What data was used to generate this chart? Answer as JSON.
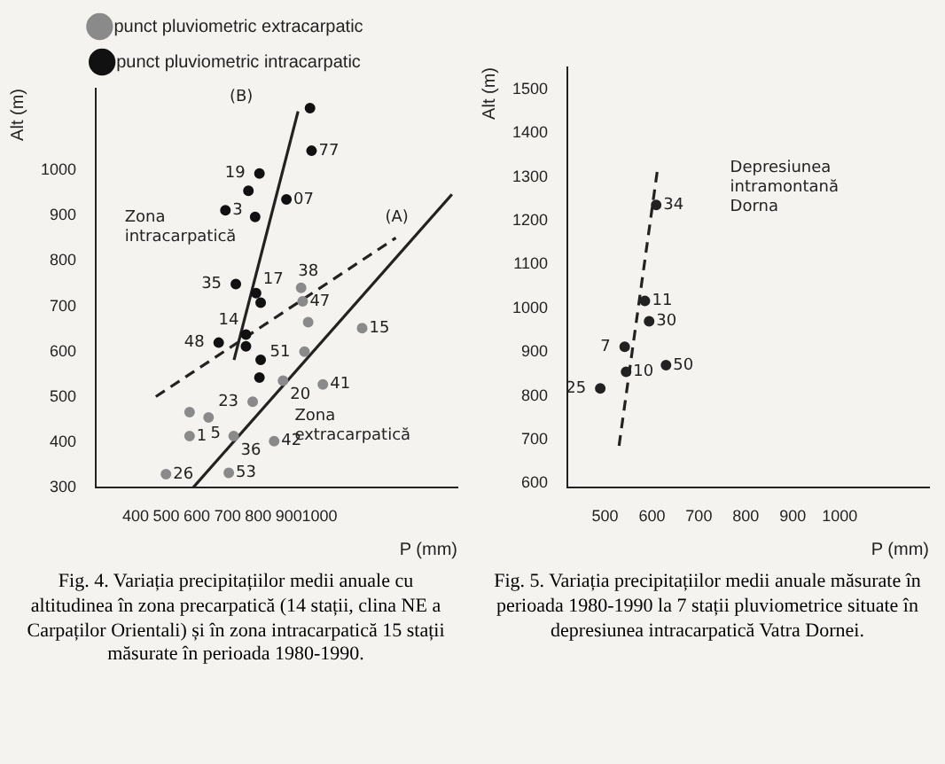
{
  "chart_data": [
    {
      "type": "scatter",
      "xlabel": "P (mm)",
      "ylabel": "Alt (m)",
      "xlim": [
        270,
        1450
      ],
      "xticks": [
        400,
        500,
        600,
        700,
        800,
        900,
        1000
      ],
      "ylim": [
        300,
        1180
      ],
      "yticks": [
        300,
        400,
        500,
        600,
        700,
        800,
        900,
        1000
      ],
      "grid": false,
      "legend": "top",
      "marker": "circle",
      "series": [
        {
          "name": "punct pluviometric extracarpatic",
          "color": "#8a8a8a",
          "x": [
            940,
            945,
            963,
            1139,
            951,
            881,
            1011,
            782,
            576,
            638,
            576,
            720,
            852,
            499,
            704
          ],
          "values": [
            741,
            711,
            665,
            652,
            600,
            536,
            528,
            490,
            467,
            455,
            414,
            414,
            403,
            330,
            333
          ]
        },
        {
          "name": "punct pluviometric intracarpatic",
          "color": "#111111",
          "x": [
            969,
            974,
            804,
            768,
            892,
            693,
            790,
            727,
            793,
            808,
            760,
            671,
            760,
            808,
            804
          ],
          "values": [
            1137,
            1043,
            993,
            955,
            936,
            912,
            897,
            749,
            729,
            708,
            638,
            620,
            612,
            582,
            543
          ]
        },
        {
          "type": "line",
          "color": "#222222",
          "line_style": "solid",
          "marker": "none",
          "x": [
            721,
            930
          ],
          "values": [
            582,
            1130
          ]
        },
        {
          "type": "line",
          "color": "#222222",
          "line_style": "solid",
          "marker": "none",
          "x": [
            587,
            1432
          ],
          "values": [
            300,
            947
          ]
        },
        {
          "type": "line",
          "color": "#222222",
          "line_style": "dashed",
          "marker": "none",
          "x": [
            466,
            1249
          ],
          "values": [
            501,
            851
          ]
        }
      ],
      "annotations": [
        "(B)",
        "(A)",
        "Zona intracarpatică",
        "Zona extracarpatică",
        {
          "text": "77",
          "x": 974,
          "y": 1043
        },
        {
          "text": "19",
          "x": 804,
          "y": 993
        },
        {
          "text": "07",
          "x": 892,
          "y": 936
        },
        {
          "text": "3",
          "x": 693,
          "y": 912
        },
        {
          "text": "35",
          "x": 727,
          "y": 749
        },
        {
          "text": "17",
          "x": 793,
          "y": 729
        },
        {
          "text": "38",
          "x": 940,
          "y": 741
        },
        {
          "text": "47",
          "x": 945,
          "y": 711
        },
        {
          "text": "15",
          "x": 1139,
          "y": 652
        },
        {
          "text": "14",
          "x": 760,
          "y": 638
        },
        {
          "text": "48",
          "x": 671,
          "y": 620
        },
        {
          "text": "51",
          "x": 951,
          "y": 600
        },
        {
          "text": "20",
          "x": 881,
          "y": 536
        },
        {
          "text": "41",
          "x": 1011,
          "y": 528
        },
        {
          "text": "23",
          "x": 782,
          "y": 490
        },
        {
          "text": "5",
          "x": 638,
          "y": 455
        },
        {
          "text": "1",
          "x": 576,
          "y": 414
        },
        {
          "text": "36",
          "x": 720,
          "y": 414
        },
        {
          "text": "42",
          "x": 852,
          "y": 403
        },
        {
          "text": "26",
          "x": 499,
          "y": 330
        },
        {
          "text": "53",
          "x": 704,
          "y": 333
        },
        "Fig. 4. Variația precipitațiilor medii anuale cu altitudinea în zona precarpatică (14 stații, clina NE a Carpaților Orientali) și în zona intracarpatică 15 stații măsurate în perioada 1980-1990."
      ]
    },
    {
      "type": "scatter",
      "xlabel": "P (mm)",
      "ylabel": "Alt (m)",
      "xlim": [
        420,
        1190
      ],
      "xticks": [
        500,
        600,
        700,
        800,
        900,
        1000
      ],
      "ylim": [
        590,
        1550
      ],
      "yticks": [
        600,
        700,
        800,
        900,
        1000,
        1100,
        1200,
        1300,
        1400,
        1500
      ],
      "grid": false,
      "marker": "circle",
      "series": [
        {
          "color": "#222222",
          "x": [
            609,
            585,
            594,
            542,
            545,
            630,
            490
          ],
          "values": [
            1236,
            1017,
            970,
            912,
            855,
            870,
            817
          ]
        },
        {
          "type": "line",
          "color": "#222222",
          "line_style": "dashed",
          "marker": "none",
          "x": [
            530,
            612
          ],
          "values": [
            686,
            1318
          ]
        }
      ],
      "annotations": [
        "Depresiunea intramontană Dorna",
        {
          "text": "34",
          "x": 609,
          "y": 1236
        },
        {
          "text": "11",
          "x": 585,
          "y": 1017
        },
        {
          "text": "30",
          "x": 594,
          "y": 970
        },
        {
          "text": "7",
          "x": 542,
          "y": 912
        },
        {
          "text": "10",
          "x": 545,
          "y": 855
        },
        {
          "text": "50",
          "x": 630,
          "y": 870
        },
        {
          "text": "25",
          "x": 490,
          "y": 817
        },
        "Fig. 5. Variația precipitațiilor medii anuale măsurate în perioada 1980-1990 la 7 stații pluviometrice situate în depresiunea intracarpatică Vatra Dornei."
      ]
    }
  ]
}
